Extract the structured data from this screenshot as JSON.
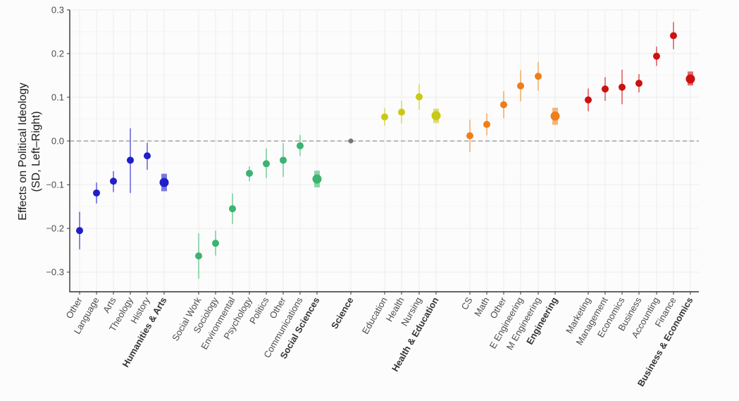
{
  "chart_data": {
    "type": "scatter",
    "subtype": "point-with-confidence-interval",
    "title": "",
    "xlabel": "",
    "ylabel": [
      "Effects on Political Ideology",
      "(SD, Left–Right)"
    ],
    "ylim": [
      -0.345,
      0.3
    ],
    "yticks": [
      0.3,
      0.2,
      0.1,
      0.0,
      -0.1,
      -0.2,
      -0.3
    ],
    "ytick_labels": [
      "0.3",
      "0.2",
      "0.1",
      "0.0",
      "−0.1",
      "−0.2",
      "−0.3"
    ],
    "reference_line": {
      "y": 0.0,
      "style": "dashed"
    },
    "grid": true,
    "legend": "none",
    "colors": {
      "humanities": "#1f1fc8",
      "humanities_ci": "#6a6adf",
      "social": "#3cb371",
      "social_ci": "#7fcf9c",
      "science": "#777777",
      "health": "#c9c914",
      "health_ci": "#d9d96a",
      "engineering": "#ee7e1a",
      "engineering_ci": "#f2ae6c",
      "business": "#cc1111",
      "business_ci": "#dd5f5f",
      "grid": "#ebebeb",
      "axis": "#333333",
      "refline": "#999999"
    },
    "groups": [
      {
        "name": "Humanities & Arts",
        "color_key": "humanities",
        "points": [
          {
            "label": "Other",
            "value": -0.205,
            "lo": -0.248,
            "hi": -0.162,
            "aggregate": false
          },
          {
            "label": "Language",
            "value": -0.119,
            "lo": -0.143,
            "hi": -0.095,
            "aggregate": false
          },
          {
            "label": "Arts",
            "value": -0.092,
            "lo": -0.117,
            "hi": -0.069,
            "aggregate": false
          },
          {
            "label": "Theology",
            "value": -0.044,
            "lo": -0.119,
            "hi": 0.029,
            "aggregate": false
          },
          {
            "label": "History",
            "value": -0.034,
            "lo": -0.066,
            "hi": -0.004,
            "aggregate": false
          },
          {
            "label": "Humanities & Arts",
            "value": -0.095,
            "lo": -0.115,
            "hi": -0.075,
            "aggregate": true
          }
        ]
      },
      {
        "name": "Social Sciences",
        "color_key": "social",
        "points": [
          {
            "label": "Social Work",
            "value": -0.263,
            "lo": -0.315,
            "hi": -0.211,
            "aggregate": false
          },
          {
            "label": "Sociology",
            "value": -0.234,
            "lo": -0.262,
            "hi": -0.205,
            "aggregate": false
          },
          {
            "label": "Environmental",
            "value": -0.155,
            "lo": -0.19,
            "hi": -0.12,
            "aggregate": false
          },
          {
            "label": "Psychology",
            "value": -0.074,
            "lo": -0.092,
            "hi": -0.058,
            "aggregate": false
          },
          {
            "label": "Politics",
            "value": -0.052,
            "lo": -0.085,
            "hi": -0.017,
            "aggregate": false
          },
          {
            "label": "Other",
            "value": -0.044,
            "lo": -0.082,
            "hi": -0.005,
            "aggregate": false
          },
          {
            "label": "Communications",
            "value": -0.011,
            "lo": -0.034,
            "hi": 0.014,
            "aggregate": false
          },
          {
            "label": "Social Sciences",
            "value": -0.087,
            "lo": -0.106,
            "hi": -0.068,
            "aggregate": true
          }
        ]
      },
      {
        "name": "Science",
        "color_key": "science",
        "points": [
          {
            "label": "Science",
            "value": 0.0,
            "lo": 0.0,
            "hi": 0.0,
            "aggregate": true
          }
        ]
      },
      {
        "name": "Health & Education",
        "color_key": "health",
        "points": [
          {
            "label": "Education",
            "value": 0.055,
            "lo": 0.035,
            "hi": 0.075,
            "aggregate": false
          },
          {
            "label": "Health",
            "value": 0.066,
            "lo": 0.04,
            "hi": 0.092,
            "aggregate": false
          },
          {
            "label": "Nursing",
            "value": 0.101,
            "lo": 0.071,
            "hi": 0.131,
            "aggregate": false
          },
          {
            "label": "Health & Education",
            "value": 0.058,
            "lo": 0.041,
            "hi": 0.074,
            "aggregate": true
          }
        ]
      },
      {
        "name": "Engineering",
        "color_key": "engineering",
        "points": [
          {
            "label": "CS",
            "value": 0.012,
            "lo": -0.025,
            "hi": 0.049,
            "aggregate": false
          },
          {
            "label": "Math",
            "value": 0.038,
            "lo": 0.013,
            "hi": 0.063,
            "aggregate": false
          },
          {
            "label": "Other",
            "value": 0.083,
            "lo": 0.052,
            "hi": 0.114,
            "aggregate": false
          },
          {
            "label": "E Engineering",
            "value": 0.126,
            "lo": 0.091,
            "hi": 0.162,
            "aggregate": false
          },
          {
            "label": "M Engineering",
            "value": 0.148,
            "lo": 0.115,
            "hi": 0.181,
            "aggregate": false
          },
          {
            "label": "Engineering",
            "value": 0.057,
            "lo": 0.037,
            "hi": 0.076,
            "aggregate": true
          }
        ]
      },
      {
        "name": "Business & Economics",
        "color_key": "business",
        "points": [
          {
            "label": "Marketing",
            "value": 0.094,
            "lo": 0.068,
            "hi": 0.12,
            "aggregate": false
          },
          {
            "label": "Management",
            "value": 0.119,
            "lo": 0.092,
            "hi": 0.146,
            "aggregate": false
          },
          {
            "label": "Economics",
            "value": 0.123,
            "lo": 0.084,
            "hi": 0.163,
            "aggregate": false
          },
          {
            "label": "Business",
            "value": 0.132,
            "lo": 0.111,
            "hi": 0.153,
            "aggregate": false
          },
          {
            "label": "Accounting",
            "value": 0.194,
            "lo": 0.172,
            "hi": 0.216,
            "aggregate": false
          },
          {
            "label": "Finance",
            "value": 0.241,
            "lo": 0.21,
            "hi": 0.272,
            "aggregate": false
          },
          {
            "label": "Business & Economics",
            "value": 0.142,
            "lo": 0.127,
            "hi": 0.159,
            "aggregate": true
          }
        ]
      }
    ]
  }
}
